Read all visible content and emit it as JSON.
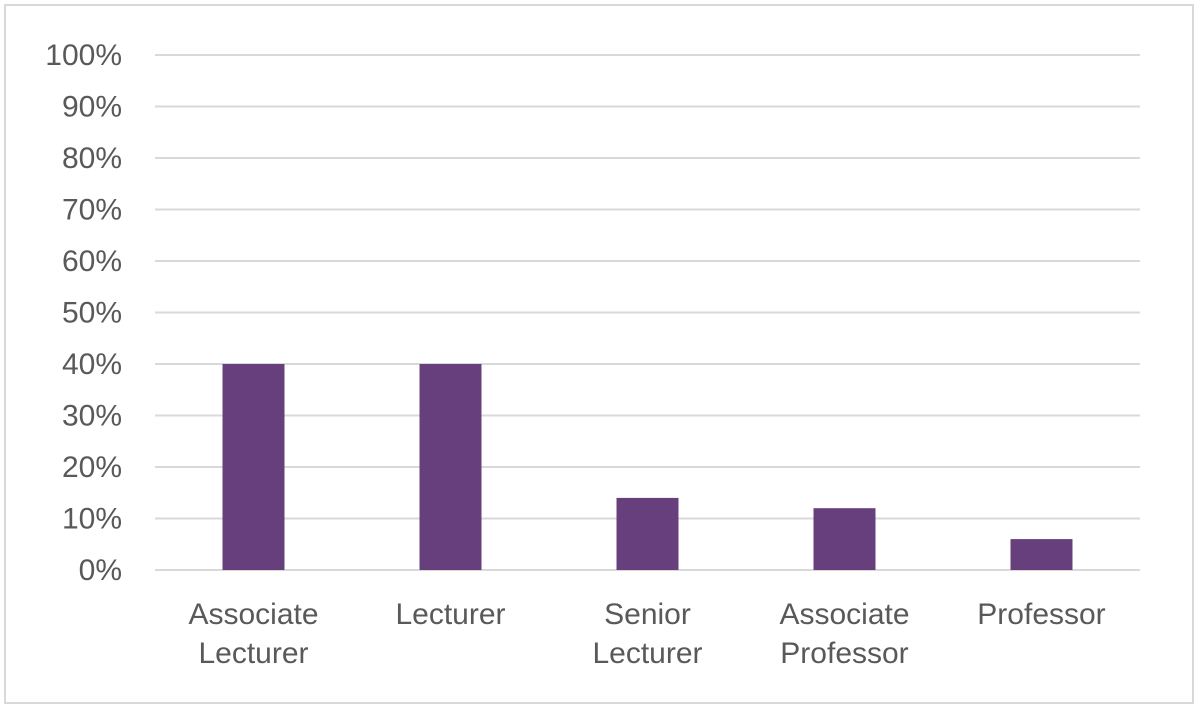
{
  "chart_data": {
    "type": "bar",
    "categories": [
      "Associate Lecturer",
      "Lecturer",
      "Senior Lecturer",
      "Associate Professor",
      "Professor"
    ],
    "values": [
      40,
      40,
      14,
      12,
      6
    ],
    "color": "#673f7d",
    "ylim": [
      0,
      100
    ],
    "yticks": [
      {
        "value": 0,
        "label": "0%"
      },
      {
        "value": 10,
        "label": "10%"
      },
      {
        "value": 20,
        "label": "20%"
      },
      {
        "value": 30,
        "label": "30%"
      },
      {
        "value": 40,
        "label": "40%"
      },
      {
        "value": 50,
        "label": "50%"
      },
      {
        "value": 60,
        "label": "60%"
      },
      {
        "value": 70,
        "label": "70%"
      },
      {
        "value": 80,
        "label": "80%"
      },
      {
        "value": 90,
        "label": "90%"
      },
      {
        "value": 100,
        "label": "100%"
      }
    ],
    "grid": true
  }
}
